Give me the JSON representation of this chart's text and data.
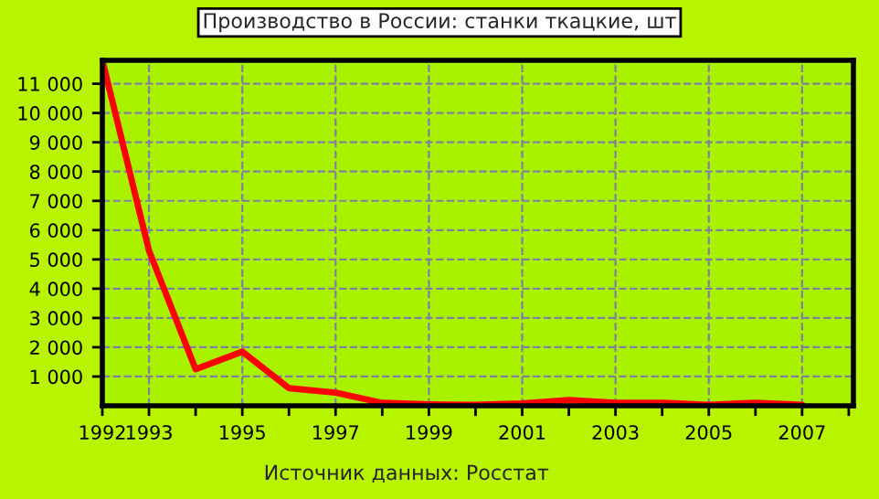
{
  "chart_data": {
    "type": "line",
    "title": "Производство в России: станки ткацкие, шт",
    "x": [
      1992,
      1993,
      1994,
      1995,
      1996,
      1997,
      1998,
      1999,
      2000,
      2001,
      2002,
      2003,
      2004,
      2005,
      2006,
      2007
    ],
    "series": [
      {
        "color": "#ff0000",
        "values": [
          11800,
          5300,
          1250,
          1850,
          600,
          450,
          100,
          50,
          30,
          80,
          200,
          100,
          100,
          30,
          100,
          30
        ]
      }
    ],
    "xlim": [
      1992,
      2008.1
    ],
    "ylim": [
      0,
      11800
    ],
    "xticks": [
      1992,
      1993,
      {
        "value": 1994,
        "label": null
      },
      1995,
      {
        "value": 1996,
        "label": null
      },
      1997,
      {
        "value": 1998,
        "label": null
      },
      1999,
      {
        "value": 2000,
        "label": null
      },
      2001,
      {
        "value": 2002,
        "label": null
      },
      2003,
      {
        "value": 2004,
        "label": null
      },
      2005,
      {
        "value": 2006,
        "label": null
      },
      2007,
      {
        "value": 2008,
        "label": null
      }
    ],
    "yticks": [
      {
        "value": 1000,
        "label": "1 000"
      },
      {
        "value": 2000,
        "label": "2 000"
      },
      {
        "value": 3000,
        "label": "3 000"
      },
      {
        "value": 4000,
        "label": "4 000"
      },
      {
        "value": 5000,
        "label": "5 000"
      },
      {
        "value": 6000,
        "label": "6 000"
      },
      {
        "value": 7000,
        "label": "7 000"
      },
      {
        "value": 8000,
        "label": "8 000"
      },
      {
        "value": 9000,
        "label": "9 000"
      },
      {
        "value": 10000,
        "label": "10 000"
      },
      {
        "value": 11000,
        "label": "11 000"
      }
    ],
    "grid": true,
    "line_style": "solid",
    "marker": "none",
    "annotations": [
      "Источник данных: Росстат"
    ]
  }
}
